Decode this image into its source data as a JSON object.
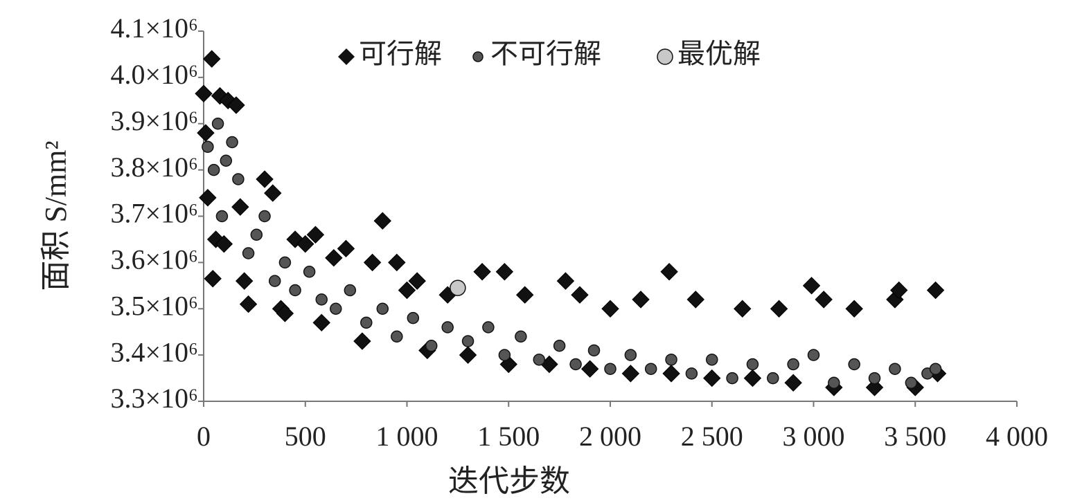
{
  "chart_data": {
    "type": "scatter",
    "xlabel": "迭代步数",
    "ylabel": "面积 S/mm²",
    "xlim": [
      0,
      4000
    ],
    "ylim": [
      3300000,
      4100000
    ],
    "xticks": [
      0,
      500,
      {
        "value": 1000,
        "label": "1 000"
      },
      {
        "value": 1500,
        "label": "1 500"
      },
      {
        "value": 2000,
        "label": "2 000"
      },
      {
        "value": 2500,
        "label": "2 500"
      },
      {
        "value": 3000,
        "label": "3 000"
      },
      {
        "value": 3500,
        "label": "3 500"
      },
      {
        "value": 4000,
        "label": "4 000"
      }
    ],
    "yticks": [
      {
        "value": 3300000,
        "label": "3.3×10⁶"
      },
      {
        "value": 3400000,
        "label": "3.4×10⁶"
      },
      {
        "value": 3500000,
        "label": "3.5×10⁶"
      },
      {
        "value": 3600000,
        "label": "3.6×10⁶"
      },
      {
        "value": 3700000,
        "label": "3.7×10⁶"
      },
      {
        "value": 3800000,
        "label": "3.8×10⁶"
      },
      {
        "value": 3900000,
        "label": "3.9×10⁶"
      },
      {
        "value": 4000000,
        "label": "4.0×10⁶"
      },
      {
        "value": 4100000,
        "label": "4.1×10⁶"
      }
    ],
    "legend": "top",
    "series": [
      {
        "name": "可行解",
        "marker": "diamond",
        "color": "#111111",
        "x": [
          0,
          10,
          20,
          40,
          45,
          60,
          80,
          100,
          120,
          160,
          180,
          200,
          220,
          300,
          340,
          380,
          400,
          450,
          500,
          550,
          580,
          640,
          700,
          780,
          830,
          880,
          950,
          1000,
          1050,
          1100,
          1200,
          1300,
          1370,
          1480,
          1500,
          1580,
          1700,
          1780,
          1850,
          1900,
          2000,
          2100,
          2150,
          2290,
          2300,
          2420,
          2500,
          2650,
          2700,
          2830,
          2900,
          2990,
          3050,
          3100,
          3200,
          3300,
          3400,
          3420,
          3500,
          3600,
          3610
        ],
        "values": [
          3965000,
          3880000,
          3740000,
          4040000,
          3565000,
          3650000,
          3960000,
          3640000,
          3950000,
          3940000,
          3720000,
          3560000,
          3510000,
          3780000,
          3750000,
          3500000,
          3490000,
          3650000,
          3640000,
          3660000,
          3470000,
          3610000,
          3630000,
          3430000,
          3600000,
          3690000,
          3600000,
          3540000,
          3560000,
          3410000,
          3530000,
          3400000,
          3580000,
          3580000,
          3380000,
          3530000,
          3380000,
          3560000,
          3530000,
          3370000,
          3500000,
          3360000,
          3520000,
          3580000,
          3360000,
          3520000,
          3350000,
          3500000,
          3350000,
          3500000,
          3340000,
          3550000,
          3520000,
          3330000,
          3500000,
          3330000,
          3520000,
          3540000,
          3330000,
          3540000,
          3360000
        ]
      },
      {
        "name": "不可行解",
        "marker": "circle",
        "color": "#555555",
        "x": [
          20,
          50,
          70,
          90,
          110,
          140,
          170,
          220,
          260,
          300,
          350,
          400,
          450,
          520,
          580,
          650,
          720,
          800,
          880,
          950,
          1030,
          1120,
          1200,
          1300,
          1400,
          1480,
          1560,
          1650,
          1750,
          1830,
          1920,
          2000,
          2100,
          2200,
          2300,
          2400,
          2500,
          2600,
          2700,
          2800,
          2900,
          3000,
          3100,
          3200,
          3300,
          3400,
          3480,
          3560,
          3600
        ],
        "values": [
          3850000,
          3800000,
          3900000,
          3700000,
          3820000,
          3860000,
          3780000,
          3620000,
          3660000,
          3700000,
          3560000,
          3600000,
          3540000,
          3580000,
          3520000,
          3500000,
          3540000,
          3470000,
          3500000,
          3440000,
          3480000,
          3420000,
          3460000,
          3430000,
          3460000,
          3400000,
          3440000,
          3390000,
          3420000,
          3380000,
          3410000,
          3370000,
          3400000,
          3370000,
          3390000,
          3360000,
          3390000,
          3350000,
          3380000,
          3350000,
          3380000,
          3400000,
          3340000,
          3380000,
          3350000,
          3370000,
          3340000,
          3360000,
          3370000
        ]
      },
      {
        "name": "最优解",
        "marker": "circle",
        "color": "#c8c8c8",
        "x": [
          1250
        ],
        "values": [
          3545000
        ]
      }
    ]
  }
}
